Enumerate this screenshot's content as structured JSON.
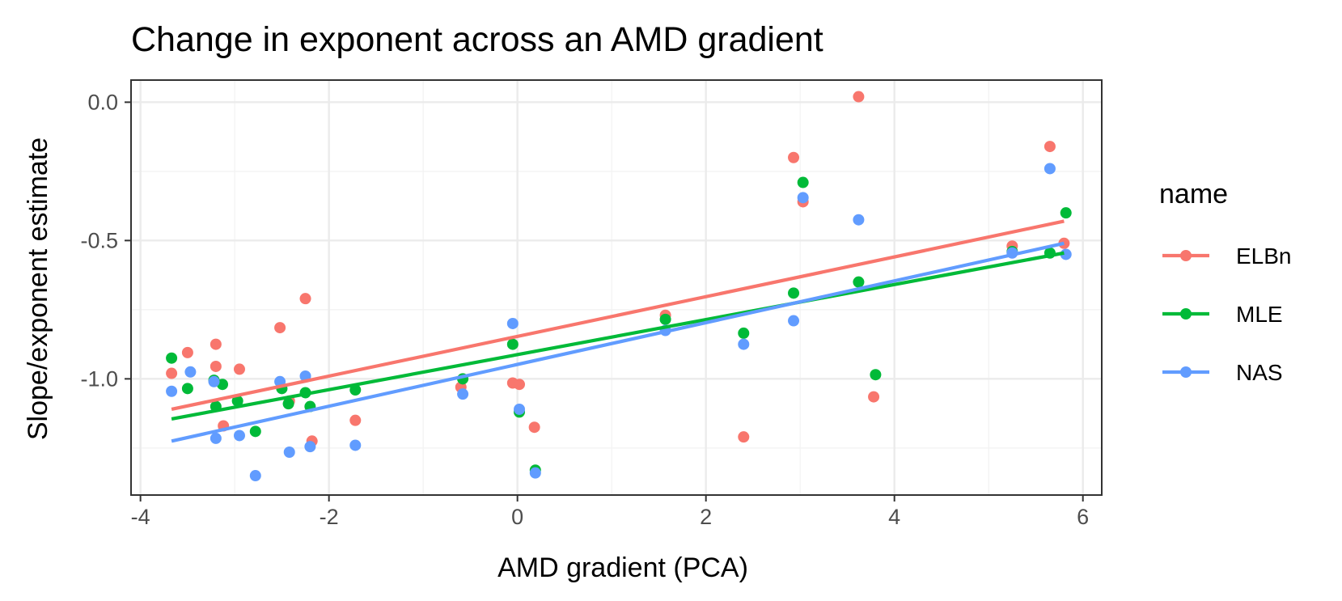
{
  "chart_data": {
    "type": "scatter",
    "title": "Change in exponent across an AMD gradient",
    "xlabel": "AMD gradient (PCA)",
    "ylabel": "Slope/exponent estimate",
    "xlim": [
      -4.1,
      6.2
    ],
    "ylim": [
      -1.42,
      0.08
    ],
    "x_ticks": [
      -4,
      -2,
      0,
      2,
      4,
      6
    ],
    "x_tick_labels": [
      "-4",
      "-2",
      "0",
      "2",
      "4",
      "6"
    ],
    "y_ticks": [
      0.0,
      -0.5,
      -1.0
    ],
    "y_tick_labels": [
      "0.0",
      "-0.5",
      "-1.0"
    ],
    "grid": true,
    "legend": {
      "title": "name",
      "position": "right",
      "entries": [
        "ELBn",
        "MLE",
        "NAS"
      ]
    },
    "series": [
      {
        "name": "ELBn",
        "color": "#F8766D",
        "points": [
          [
            -3.67,
            -0.98
          ],
          [
            -3.5,
            -0.905
          ],
          [
            -3.2,
            -0.875
          ],
          [
            -3.2,
            -0.955
          ],
          [
            -3.12,
            -1.17
          ],
          [
            -2.95,
            -0.965
          ],
          [
            -2.52,
            -0.815
          ],
          [
            -2.42,
            -1.08
          ],
          [
            -2.25,
            -0.71
          ],
          [
            -2.18,
            -1.225
          ],
          [
            -1.72,
            -1.15
          ],
          [
            -0.6,
            -1.03
          ],
          [
            -0.05,
            -1.015
          ],
          [
            0.02,
            -1.02
          ],
          [
            0.18,
            -1.175
          ],
          [
            1.57,
            -0.77
          ],
          [
            2.4,
            -1.21
          ],
          [
            2.93,
            -0.2
          ],
          [
            3.03,
            -0.36
          ],
          [
            3.62,
            0.02
          ],
          [
            3.78,
            -1.065
          ],
          [
            5.25,
            -0.52
          ],
          [
            5.65,
            -0.16
          ],
          [
            5.8,
            -0.51
          ]
        ],
        "trend": [
          [
            -3.67,
            -1.11
          ],
          [
            5.8,
            -0.43
          ]
        ]
      },
      {
        "name": "MLE",
        "color": "#00BA38",
        "points": [
          [
            -3.67,
            -0.925
          ],
          [
            -3.5,
            -1.035
          ],
          [
            -3.22,
            -1.005
          ],
          [
            -3.2,
            -1.1
          ],
          [
            -3.13,
            -1.02
          ],
          [
            -2.97,
            -1.08
          ],
          [
            -2.78,
            -1.19
          ],
          [
            -2.5,
            -1.035
          ],
          [
            -2.43,
            -1.09
          ],
          [
            -2.25,
            -1.05
          ],
          [
            -2.2,
            -1.1
          ],
          [
            -1.72,
            -1.04
          ],
          [
            -0.58,
            -1.0
          ],
          [
            -0.05,
            -0.875
          ],
          [
            0.02,
            -1.12
          ],
          [
            0.19,
            -1.33
          ],
          [
            1.57,
            -0.785
          ],
          [
            2.4,
            -0.835
          ],
          [
            2.93,
            -0.69
          ],
          [
            3.03,
            -0.29
          ],
          [
            3.62,
            -0.65
          ],
          [
            3.8,
            -0.985
          ],
          [
            5.25,
            -0.54
          ],
          [
            5.65,
            -0.545
          ],
          [
            5.82,
            -0.4
          ]
        ],
        "trend": [
          [
            -3.67,
            -1.145
          ],
          [
            5.8,
            -0.545
          ]
        ]
      },
      {
        "name": "NAS",
        "color": "#619CFF",
        "points": [
          [
            -3.67,
            -1.045
          ],
          [
            -3.47,
            -0.975
          ],
          [
            -3.22,
            -1.01
          ],
          [
            -3.2,
            -1.215
          ],
          [
            -2.95,
            -1.205
          ],
          [
            -2.78,
            -1.35
          ],
          [
            -2.52,
            -1.01
          ],
          [
            -2.42,
            -1.265
          ],
          [
            -2.25,
            -0.99
          ],
          [
            -2.2,
            -1.245
          ],
          [
            -1.72,
            -1.24
          ],
          [
            -0.58,
            -1.055
          ],
          [
            -0.05,
            -0.8
          ],
          [
            0.02,
            -1.11
          ],
          [
            0.19,
            -1.34
          ],
          [
            1.57,
            -0.825
          ],
          [
            2.4,
            -0.875
          ],
          [
            2.93,
            -0.79
          ],
          [
            3.03,
            -0.345
          ],
          [
            3.62,
            -0.425
          ],
          [
            5.25,
            -0.545
          ],
          [
            5.65,
            -0.24
          ],
          [
            5.82,
            -0.55
          ]
        ],
        "trend": [
          [
            -3.67,
            -1.225
          ],
          [
            5.8,
            -0.51
          ]
        ]
      }
    ]
  }
}
